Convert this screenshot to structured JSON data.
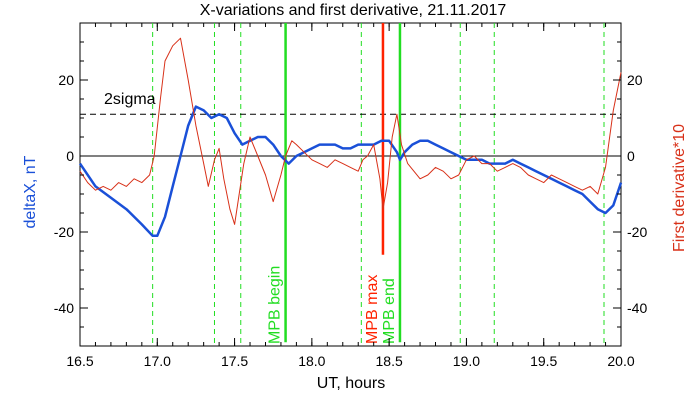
{
  "chart_data": {
    "type": "line",
    "title": "X-variations and first derivative, 21.11.2017",
    "xlabel": "UT, hours",
    "ylabel_left": "deltaX, nT",
    "ylabel_right": "First derivative*10",
    "xlim": [
      16.5,
      20.0
    ],
    "ylim": [
      -50,
      35
    ],
    "x_ticks": [
      "16.5",
      "17.0",
      "17.5",
      "18.0",
      "18.5",
      "19.0",
      "19.5",
      "20.0"
    ],
    "x_tick_values": [
      16.5,
      17.0,
      17.5,
      18.0,
      18.5,
      19.0,
      19.5,
      20.0
    ],
    "y_ticks": [
      "-40",
      "-20",
      "0",
      "20"
    ],
    "y_tick_values": [
      -40,
      -20,
      0,
      20
    ],
    "grid": false,
    "colors": {
      "deltaX": "#1a50d8",
      "derivative": "#d83018",
      "markers_green": "#22dd22",
      "marker_red": "#ff2200",
      "sigma_line": "#000000",
      "zero_line": "#000000"
    },
    "sigma": {
      "label": "2sigma",
      "value": 11
    },
    "zero_line": 0,
    "dashed_markers": [
      16.97,
      17.37,
      17.54,
      18.32,
      18.96,
      19.18,
      19.89
    ],
    "events": [
      {
        "label": "MPB begin",
        "x": 17.83,
        "color": "#22dd22",
        "y_range": [
          -49,
          35
        ]
      },
      {
        "label": "MPB max",
        "x": 18.46,
        "color": "#ff2200",
        "y_range": [
          -26,
          35
        ]
      },
      {
        "label": "MPB end",
        "x": 18.57,
        "color": "#22dd22",
        "y_range": [
          -49,
          35
        ]
      }
    ],
    "series": [
      {
        "key": "deltaX",
        "x": [
          16.5,
          16.6,
          16.7,
          16.8,
          16.9,
          16.97,
          17.0,
          17.05,
          17.1,
          17.15,
          17.2,
          17.25,
          17.3,
          17.35,
          17.4,
          17.45,
          17.5,
          17.55,
          17.6,
          17.65,
          17.7,
          17.75,
          17.8,
          17.85,
          17.9,
          17.95,
          18.0,
          18.05,
          18.1,
          18.15,
          18.2,
          18.25,
          18.3,
          18.35,
          18.4,
          18.45,
          18.5,
          18.55,
          18.57,
          18.6,
          18.65,
          18.7,
          18.75,
          18.8,
          18.85,
          18.9,
          18.95,
          19.0,
          19.05,
          19.1,
          19.15,
          19.2,
          19.25,
          19.3,
          19.35,
          19.4,
          19.45,
          19.5,
          19.55,
          19.6,
          19.65,
          19.7,
          19.75,
          19.8,
          19.85,
          19.9,
          19.95,
          20.0
        ],
        "values": [
          -2,
          -8,
          -11,
          -14,
          -18,
          -21,
          -21,
          -16,
          -8,
          0,
          8,
          13,
          12,
          10,
          11,
          10,
          6,
          3,
          4,
          5,
          5,
          3,
          0,
          -2,
          0,
          1,
          2,
          3,
          3,
          3,
          2,
          2,
          3,
          3,
          3,
          4,
          4,
          1,
          -1,
          1,
          3,
          4,
          4,
          3,
          2,
          1,
          0,
          -1,
          -1,
          -1,
          -2,
          -2,
          -2,
          -1,
          -2,
          -3,
          -4,
          -5,
          -6,
          -7,
          -8,
          -9,
          -10,
          -12,
          -14,
          -15,
          -13,
          -7
        ]
      },
      {
        "key": "derivative",
        "x": [
          16.5,
          16.55,
          16.6,
          16.65,
          16.7,
          16.75,
          16.8,
          16.85,
          16.9,
          16.95,
          16.98,
          17.02,
          17.05,
          17.1,
          17.15,
          17.2,
          17.25,
          17.3,
          17.33,
          17.37,
          17.4,
          17.43,
          17.47,
          17.5,
          17.53,
          17.56,
          17.6,
          17.65,
          17.7,
          17.75,
          17.8,
          17.83,
          17.87,
          17.9,
          17.95,
          18.0,
          18.05,
          18.1,
          18.15,
          18.2,
          18.25,
          18.3,
          18.33,
          18.36,
          18.4,
          18.44,
          18.46,
          18.49,
          18.52,
          18.55,
          18.58,
          18.62,
          18.66,
          18.7,
          18.75,
          18.8,
          18.85,
          18.9,
          18.95,
          19.0,
          19.05,
          19.1,
          19.15,
          19.2,
          19.25,
          19.3,
          19.35,
          19.4,
          19.45,
          19.5,
          19.55,
          19.6,
          19.65,
          19.7,
          19.75,
          19.8,
          19.85,
          19.9,
          19.95,
          20.0
        ],
        "values": [
          -4,
          -7,
          -9,
          -8,
          -9,
          -7,
          -8,
          -6,
          -7,
          -5,
          0,
          15,
          25,
          29,
          31,
          20,
          8,
          -2,
          -8,
          -1,
          2,
          -6,
          -14,
          -18,
          -10,
          -2,
          5,
          0,
          -5,
          -12,
          -5,
          0,
          4,
          3,
          1,
          -1,
          -2,
          -3,
          -1,
          -2,
          -3,
          -4,
          -1,
          0,
          3,
          -6,
          -14,
          -7,
          5,
          11,
          3,
          -2,
          -4,
          -6,
          -5,
          -3,
          -4,
          -6,
          -5,
          -1,
          0,
          -2,
          -2,
          -4,
          -3,
          -2,
          -3,
          -5,
          -6,
          -7,
          -5,
          -6,
          -7,
          -8,
          -9,
          -8,
          -10,
          -3,
          12,
          22
        ]
      }
    ]
  }
}
